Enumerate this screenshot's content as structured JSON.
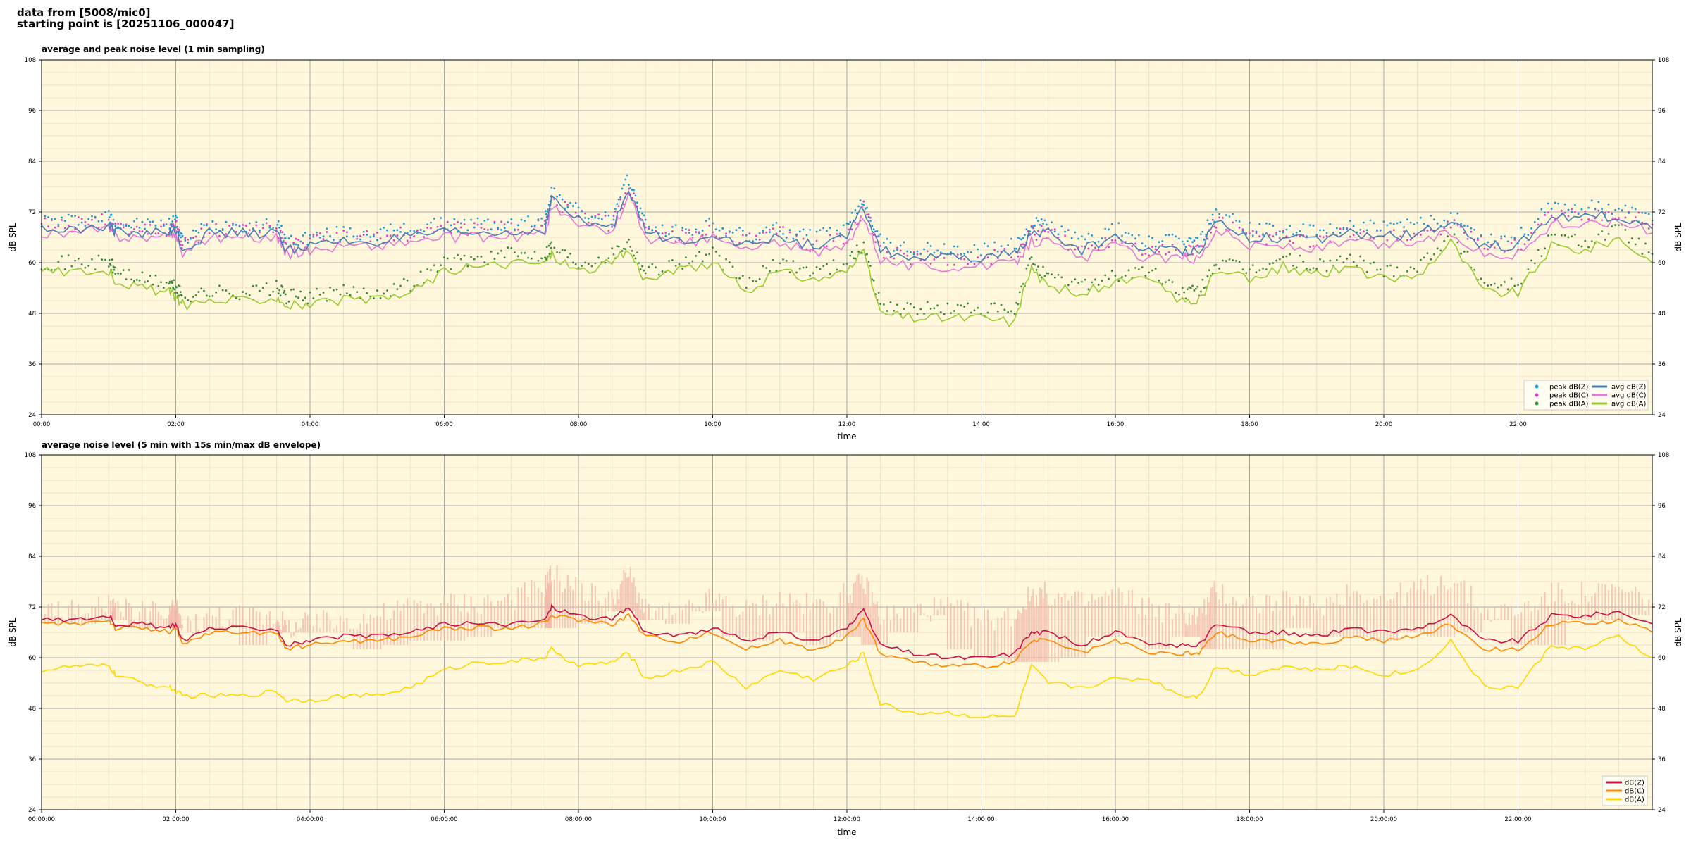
{
  "header": {
    "line1": "data from [5008/mic0]",
    "line2": "starting point is [20251106_000047]"
  },
  "colors": {
    "plot_bg": "#fff8dc",
    "major_grid": "#a8a8a8",
    "minor_grid": "#ead9c4",
    "peak_z": "#1f9ad6",
    "peak_c": "#e040c0",
    "peak_a": "#3a8a3a",
    "avg_z": "#4a7fb5",
    "avg_c": "#e47ad6",
    "avg_a": "#99cc33",
    "env": "#f2b8aa",
    "dbz": "#cc1144",
    "dbc": "#ff8800",
    "dba": "#ffd700"
  },
  "chart_data": [
    {
      "type": "line",
      "title": "average and peak noise level (1 min sampling)",
      "xlabel": "time",
      "ylabel": "dB SPL",
      "y2label": "dB SPL",
      "xlim_hours": [
        0,
        24
      ],
      "ylim": [
        24,
        108
      ],
      "yticks": [
        "24",
        "36",
        "48",
        "60",
        "72",
        "84",
        "96",
        "108"
      ],
      "xticks": [
        "00:00",
        "02:00",
        "04:00",
        "06:00",
        "08:00",
        "10:00",
        "12:00",
        "14:00",
        "16:00",
        "18:00",
        "20:00",
        "22:00"
      ],
      "grid": true,
      "legend_position": "lower-right",
      "legend": [
        "peak dB(Z)",
        "peak dB(C)",
        "peak dB(A)",
        "avg dB(Z)",
        "avg dB(C)",
        "avg dB(A)"
      ],
      "x": [
        0,
        0.5,
        1,
        1.1,
        1.5,
        1.9,
        2,
        2.1,
        2.5,
        3,
        3.5,
        3.65,
        4,
        4.5,
        5,
        5.5,
        6,
        6.5,
        7,
        7.5,
        7.6,
        8,
        8.5,
        8.75,
        9,
        9.5,
        10,
        10.5,
        11,
        11.5,
        12,
        12.25,
        12.5,
        13,
        13.5,
        14,
        14.5,
        14.75,
        15,
        15.5,
        16,
        16.5,
        17,
        17.25,
        17.5,
        18,
        18.5,
        19,
        19.5,
        20,
        20.5,
        21,
        21.5,
        22,
        22.5,
        23,
        23.5,
        24
      ],
      "series": [
        {
          "name": "avg dB(Z)",
          "values": [
            68,
            68,
            69,
            67,
            67,
            67,
            68,
            63,
            67,
            67,
            67,
            63,
            64,
            65,
            65,
            66,
            67,
            67,
            67,
            68,
            75,
            70,
            68,
            78,
            67,
            65,
            67,
            64,
            66,
            64,
            66,
            73,
            63,
            61,
            61,
            61,
            62,
            67,
            67,
            63,
            66,
            63,
            63,
            63,
            70,
            66,
            66,
            65,
            67,
            66,
            67,
            69,
            64,
            64,
            71,
            71,
            71,
            68
          ]
        },
        {
          "name": "avg dB(C)",
          "values": [
            67,
            67,
            68,
            66,
            66,
            66,
            67,
            62,
            66,
            66,
            66,
            62,
            63,
            64,
            64,
            65,
            66,
            66,
            66,
            67,
            73,
            69,
            67,
            76,
            66,
            64,
            66,
            63,
            65,
            62,
            64,
            71,
            61,
            59,
            59,
            59,
            60,
            65,
            65,
            61,
            64,
            61,
            61,
            61,
            68,
            64,
            64,
            63,
            65,
            64,
            65,
            67,
            62,
            62,
            69,
            69,
            70,
            67
          ]
        },
        {
          "name": "avg dB(A)",
          "values": [
            58,
            58,
            58,
            56,
            54,
            53,
            52,
            50,
            51,
            51,
            52,
            50,
            50,
            51,
            51,
            53,
            58,
            59,
            60,
            60,
            62,
            58,
            60,
            63,
            56,
            58,
            60,
            53,
            58,
            56,
            58,
            62,
            48,
            47,
            47,
            47,
            46,
            59,
            54,
            53,
            55,
            56,
            51,
            51,
            58,
            56,
            59,
            57,
            59,
            56,
            57,
            65,
            53,
            53,
            64,
            63,
            66,
            60
          ]
        },
        {
          "name": "peak dB(Z)",
          "values": [
            70,
            70,
            71,
            69,
            69,
            69,
            70,
            65,
            69,
            69,
            69,
            65,
            66,
            67,
            67,
            68,
            69,
            69,
            69,
            70,
            77,
            72,
            70,
            80,
            69,
            67,
            69,
            66,
            68,
            66,
            68,
            75,
            65,
            63,
            63,
            63,
            64,
            69,
            69,
            65,
            68,
            65,
            65,
            65,
            72,
            68,
            68,
            67,
            69,
            68,
            69,
            71,
            66,
            66,
            73,
            73,
            73,
            70
          ]
        },
        {
          "name": "peak dB(C)",
          "values": [
            69,
            69,
            70,
            68,
            68,
            68,
            69,
            64,
            68,
            68,
            68,
            64,
            65,
            66,
            66,
            67,
            68,
            68,
            68,
            69,
            75,
            71,
            69,
            78,
            68,
            66,
            68,
            65,
            67,
            64,
            66,
            73,
            63,
            61,
            61,
            61,
            62,
            67,
            67,
            63,
            66,
            63,
            63,
            63,
            70,
            66,
            66,
            65,
            67,
            66,
            67,
            69,
            64,
            64,
            71,
            71,
            72,
            69
          ]
        },
        {
          "name": "peak dB(A)",
          "values": [
            60,
            60,
            60,
            58,
            56,
            55,
            54,
            52,
            53,
            53,
            54,
            52,
            52,
            53,
            53,
            55,
            60,
            61,
            62,
            62,
            64,
            60,
            62,
            65,
            58,
            60,
            62,
            55,
            60,
            58,
            60,
            64,
            50,
            49,
            49,
            49,
            48,
            61,
            56,
            55,
            57,
            58,
            53,
            53,
            60,
            58,
            61,
            59,
            61,
            58,
            59,
            67,
            55,
            55,
            66,
            65,
            68,
            62
          ]
        }
      ]
    },
    {
      "type": "line",
      "title": "average noise level (5 min with 15s min/max dB envelope)",
      "xlabel": "time",
      "ylabel": "dB SPL",
      "y2label": "dB SPL",
      "xlim_hours": [
        0,
        24
      ],
      "ylim": [
        24,
        108
      ],
      "yticks": [
        "24",
        "36",
        "48",
        "60",
        "72",
        "84",
        "96",
        "108"
      ],
      "xticks": [
        "00:00:00",
        "02:00:00",
        "04:00:00",
        "06:00:00",
        "08:00:00",
        "10:00:00",
        "12:00:00",
        "14:00:00",
        "16:00:00",
        "18:00:00",
        "20:00:00",
        "22:00:00"
      ],
      "grid": true,
      "legend_position": "lower-right",
      "legend": [
        "dB(Z)",
        "dB(C)",
        "dB(A)"
      ],
      "x": [
        0,
        0.5,
        1,
        1.1,
        1.5,
        1.9,
        2,
        2.1,
        2.5,
        3,
        3.5,
        3.65,
        4,
        4.5,
        5,
        5.5,
        6,
        6.5,
        7,
        7.5,
        7.6,
        8,
        8.5,
        8.75,
        9,
        9.5,
        10,
        10.5,
        11,
        11.5,
        12,
        12.25,
        12.5,
        13,
        13.5,
        14,
        14.5,
        14.75,
        15,
        15.5,
        16,
        16.5,
        17,
        17.25,
        17.5,
        18,
        18.5,
        19,
        19.5,
        20,
        20.5,
        21,
        21.5,
        22,
        22.5,
        23,
        23.5,
        24
      ],
      "series": [
        {
          "name": "dB(Z)",
          "values": [
            69,
            69,
            70,
            68,
            68,
            67,
            68,
            64,
            67,
            67,
            67,
            63,
            64,
            65,
            65,
            66,
            68,
            68,
            68,
            69,
            72,
            70,
            69,
            72,
            66,
            65,
            67,
            64,
            66,
            64,
            67,
            71,
            63,
            61,
            60,
            60,
            61,
            66,
            66,
            63,
            66,
            63,
            63,
            63,
            68,
            66,
            66,
            65,
            67,
            66,
            67,
            70,
            64,
            64,
            70,
            70,
            71,
            68
          ]
        },
        {
          "name": "dB(C)",
          "values": [
            68,
            68,
            69,
            67,
            67,
            66,
            67,
            63,
            66,
            66,
            66,
            62,
            63,
            64,
            64,
            65,
            67,
            67,
            67,
            68,
            70,
            69,
            68,
            70,
            65,
            64,
            66,
            62,
            64,
            62,
            65,
            69,
            61,
            59,
            58,
            58,
            59,
            64,
            64,
            61,
            64,
            61,
            61,
            61,
            66,
            64,
            64,
            63,
            65,
            64,
            65,
            68,
            62,
            62,
            68,
            68,
            69,
            66
          ]
        },
        {
          "name": "dB(A)",
          "values": [
            57,
            58,
            58,
            56,
            54,
            53,
            52,
            51,
            51,
            51,
            52,
            50,
            50,
            51,
            51,
            53,
            57,
            59,
            59,
            60,
            62,
            58,
            59,
            61,
            55,
            57,
            59,
            53,
            57,
            55,
            58,
            61,
            49,
            47,
            47,
            46,
            46,
            58,
            54,
            53,
            55,
            55,
            51,
            51,
            58,
            56,
            58,
            57,
            58,
            56,
            57,
            64,
            53,
            53,
            63,
            62,
            65,
            60
          ]
        },
        {
          "name": "envelope max",
          "values": [
            71,
            71,
            72,
            71,
            71,
            70,
            72,
            67,
            70,
            70,
            70,
            67,
            68,
            69,
            70,
            72,
            73,
            73,
            74,
            77,
            80,
            76,
            74,
            80,
            71,
            70,
            74,
            71,
            74,
            72,
            75,
            78,
            70,
            71,
            72,
            69,
            70,
            75,
            75,
            73,
            75,
            72,
            70,
            70,
            76,
            73,
            73,
            72,
            76,
            74,
            76,
            79,
            71,
            71,
            75,
            75,
            76,
            73
          ]
        }
      ]
    }
  ]
}
